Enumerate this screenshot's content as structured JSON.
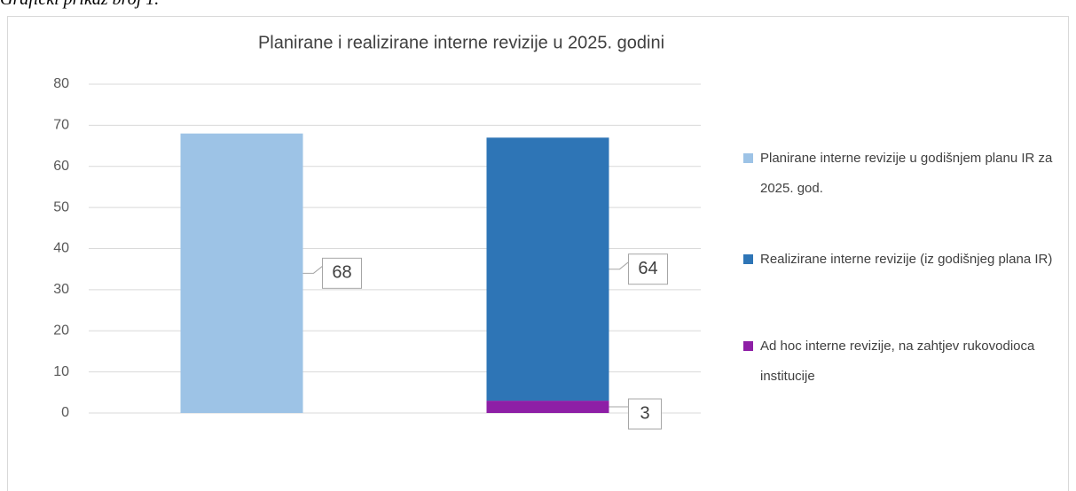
{
  "caption": "Grafički prikaz broj 1.",
  "chart_data": {
    "type": "stacked_bar",
    "title": "Planirane i realizirane interne revizije u 2025. godini",
    "categories": [
      null,
      null
    ],
    "series": [
      {
        "name": "Planirane interne revizije u godišnjem planu IR za 2025. god.",
        "color": "#9dc3e6",
        "values": [
          68,
          null
        ]
      },
      {
        "name": "Ad hoc interne revizije, na zahtjev rukovodioca institucije",
        "color": "#8e1fa6",
        "values": [
          null,
          3
        ]
      },
      {
        "name": "Realizirane interne revizije (iz godišnjeg plana IR)",
        "color": "#2e75b6",
        "values": [
          null,
          64
        ]
      }
    ],
    "legend_order": [
      0,
      2,
      1
    ],
    "ylim": [
      0,
      80
    ],
    "yticks": [
      0,
      10,
      20,
      30,
      40,
      50,
      60,
      70,
      80
    ],
    "grid": true,
    "legend": "right"
  }
}
